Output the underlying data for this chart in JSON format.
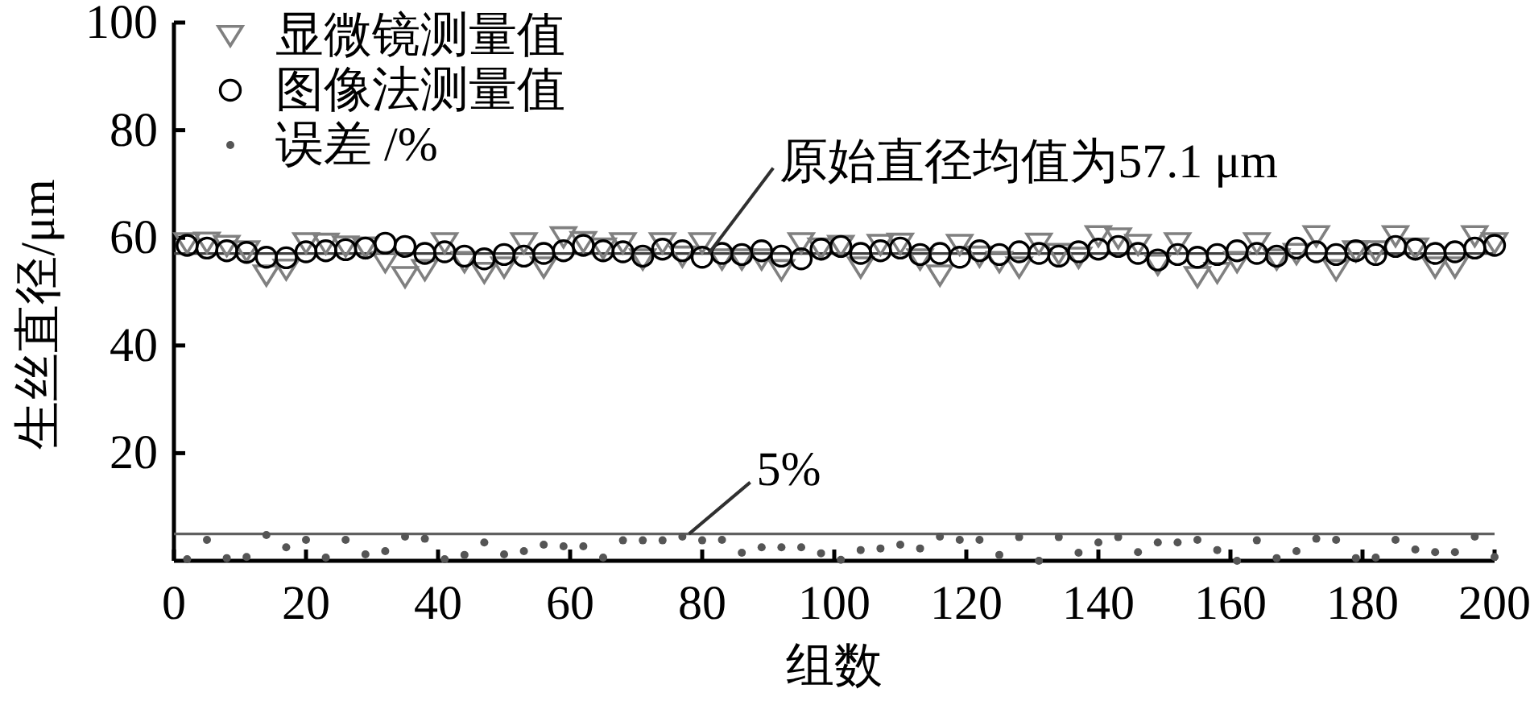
{
  "chart_data": {
    "type": "scatter",
    "xlabel": "组数",
    "ylabel": "生丝直径/μm",
    "x": [
      2,
      5,
      8,
      11,
      14,
      17,
      20,
      23,
      26,
      29,
      32,
      35,
      38,
      41,
      44,
      47,
      50,
      53,
      56,
      59,
      62,
      65,
      68,
      71,
      74,
      77,
      80,
      83,
      86,
      89,
      92,
      95,
      98,
      101,
      104,
      107,
      110,
      113,
      116,
      119,
      122,
      125,
      128,
      131,
      134,
      137,
      140,
      143,
      146,
      149,
      152,
      155,
      158,
      161,
      164,
      167,
      170,
      173,
      176,
      179,
      182,
      185,
      188,
      191,
      194,
      197,
      200
    ],
    "xlim": [
      0,
      200
    ],
    "xticks": [
      0,
      20,
      40,
      60,
      80,
      100,
      120,
      140,
      160,
      180,
      200
    ],
    "ylim": [
      0,
      100
    ],
    "yticks": [
      20,
      40,
      60,
      80,
      100
    ],
    "legend": "top left",
    "series": [
      {
        "name": "显微镜测量值",
        "color": "#808080",
        "marker": "triangle",
        "values": [
          59.1,
          59.2,
          58.6,
          57.6,
          53.1,
          54.2,
          59.1,
          59.0,
          58.5,
          58.3,
          55.6,
          52.8,
          54.1,
          59.1,
          55.6,
          53.6,
          54.6,
          59.1,
          54.6,
          60.2,
          59.3,
          58.1,
          59.1,
          56.1,
          59.1,
          56.6,
          59.1,
          56.1,
          56.1,
          56.1,
          54.1,
          59.1,
          58.1,
          58.6,
          54.6,
          58.8,
          59.0,
          56.1,
          53.1,
          58.8,
          56.6,
          55.6,
          54.6,
          59.0,
          57.1,
          56.4,
          60.4,
          60.0,
          58.8,
          55.1,
          59.1,
          52.8,
          53.6,
          55.6,
          59.1,
          56.1,
          57.1,
          60.4,
          54.1,
          57.6,
          57.6,
          60.4,
          58.1,
          54.6,
          54.6,
          60.4,
          59.1
        ]
      },
      {
        "name": "图像法测量值",
        "color": "#000000",
        "marker": "circle",
        "values": [
          58.6,
          58.1,
          57.6,
          57.3,
          56.4,
          56.3,
          57.4,
          57.6,
          57.8,
          58.1,
          59.0,
          58.4,
          57.1,
          57.4,
          56.6,
          56.1,
          56.9,
          56.6,
          57.1,
          57.6,
          58.6,
          57.6,
          57.4,
          56.6,
          57.9,
          57.6,
          56.4,
          57.1,
          56.9,
          57.6,
          56.6,
          56.1,
          57.9,
          58.4,
          57.1,
          57.6,
          58.1,
          56.9,
          57.1,
          56.4,
          57.6,
          56.9,
          57.4,
          57.1,
          56.6,
          57.4,
          57.9,
          58.4,
          57.1,
          55.9,
          56.9,
          56.4,
          56.9,
          57.6,
          57.1,
          56.6,
          58.1,
          57.4,
          56.9,
          57.6,
          56.9,
          58.4,
          57.9,
          57.1,
          57.4,
          58.1,
          58.6
        ]
      },
      {
        "name": "误差 /%",
        "color": "#555555",
        "marker": "circle",
        "values": [
          0.3,
          3.9,
          0.5,
          0.7,
          4.8,
          2.5,
          3.9,
          0.6,
          3.9,
          1.2,
          1.8,
          4.5,
          4.1,
          0.3,
          1.1,
          3.4,
          1.2,
          1.8,
          3.0,
          2.7,
          2.7,
          0.6,
          3.8,
          3.8,
          3.8,
          4.5,
          3.8,
          3.9,
          1.5,
          2.5,
          2.5,
          2.5,
          1.4,
          0.2,
          2.0,
          2.3,
          3.0,
          2.3,
          4.5,
          3.9,
          3.9,
          1.1,
          4.4,
          0.0,
          4.4,
          1.5,
          3.4,
          4.4,
          1.6,
          3.4,
          3.4,
          3.9,
          2.0,
          0.0,
          3.8,
          0.5,
          1.8,
          4.1,
          3.9,
          0.5,
          0.6,
          3.9,
          2.1,
          1.6,
          1.6,
          4.5,
          0.7
        ]
      }
    ],
    "ref_lines": [
      {
        "axis": "y",
        "value": 57.1,
        "color": "#404040"
      },
      {
        "axis": "y",
        "value": 5,
        "color": "#606060"
      }
    ],
    "annotations": [
      {
        "text": "原始直径均值为57.1 μm",
        "x": 81,
        "y": 57.1
      },
      {
        "text": "5%",
        "x": 78,
        "y": 5
      }
    ]
  }
}
